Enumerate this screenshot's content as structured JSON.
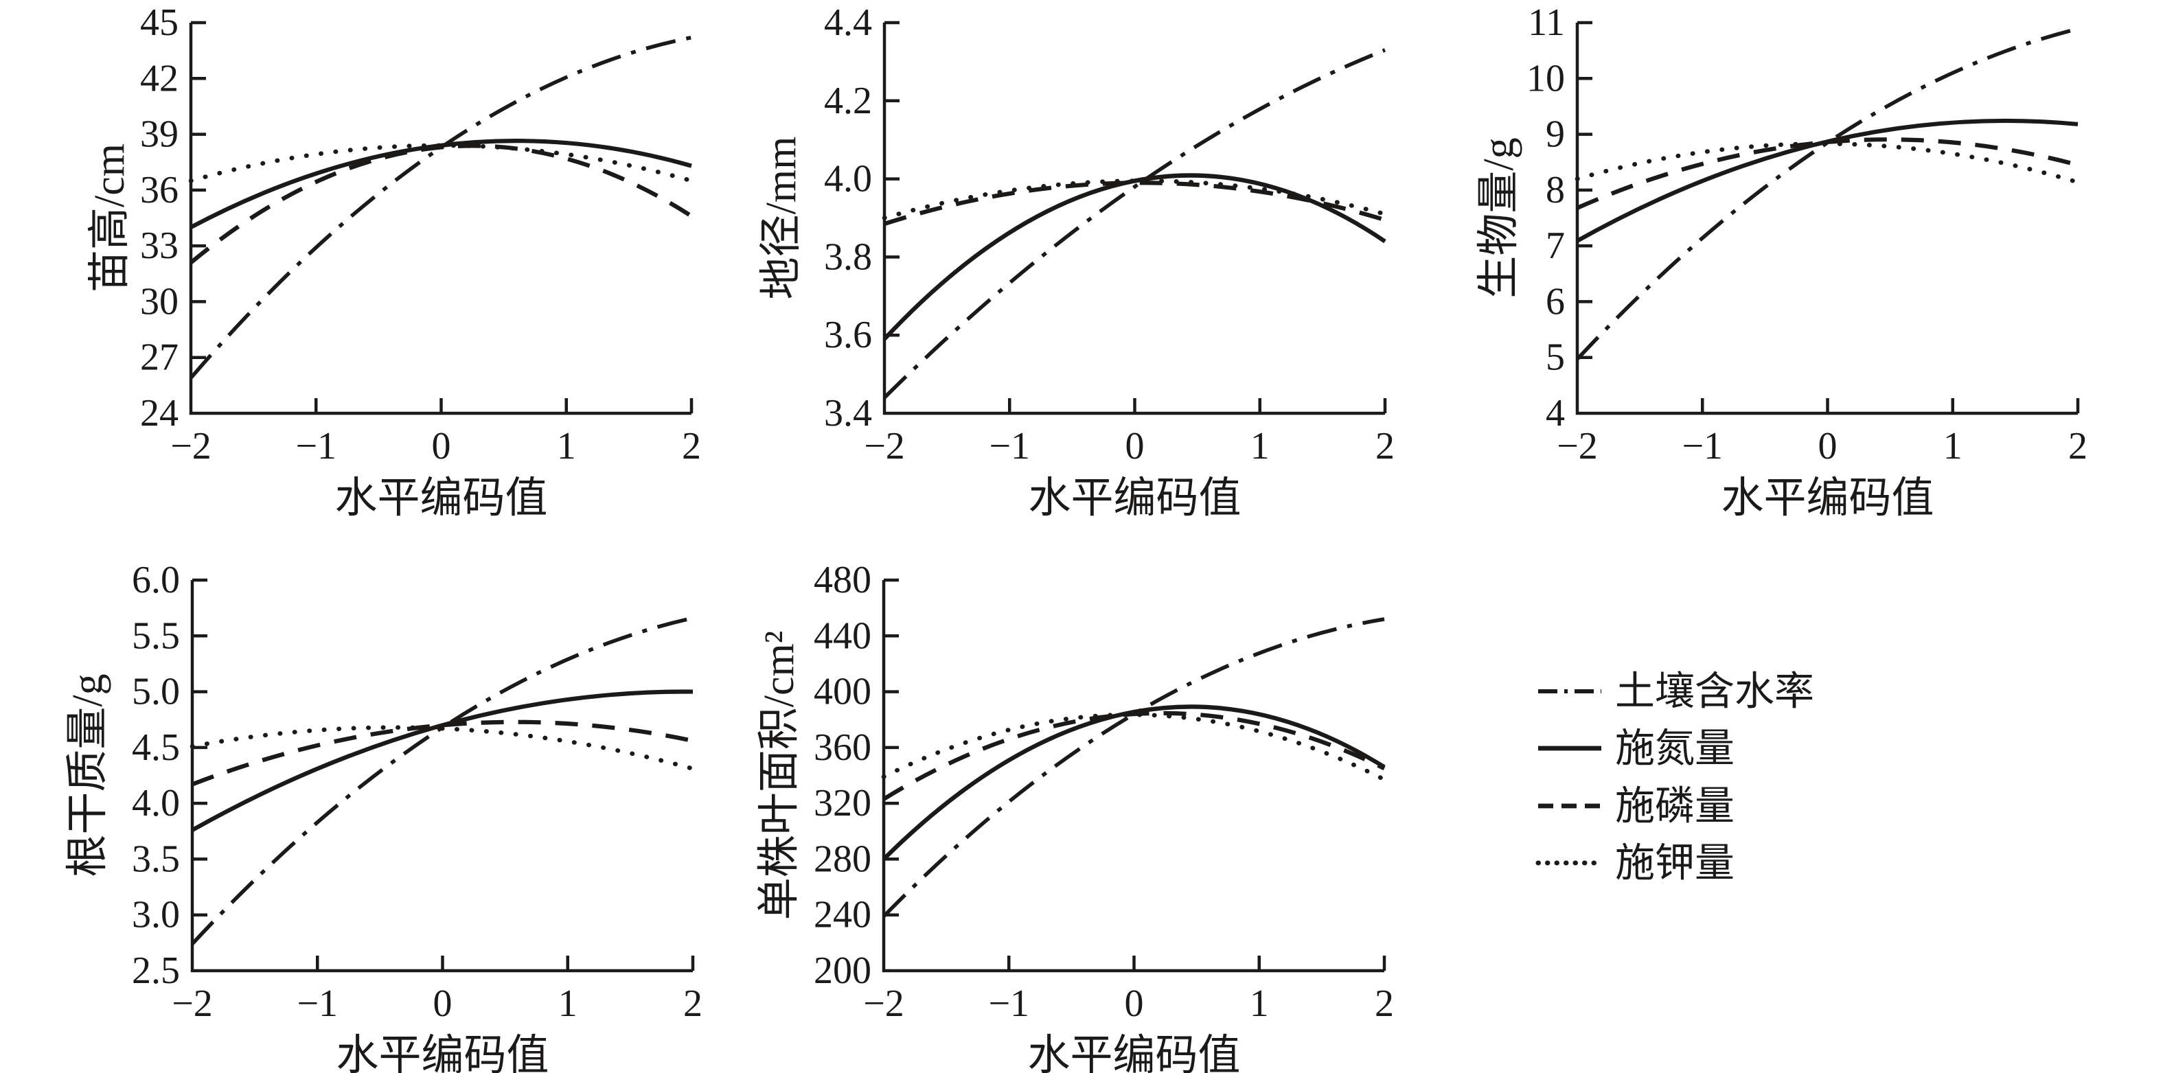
{
  "figure": {
    "background": "#ffffff",
    "line_color": "#1c1a19",
    "xlabel": "水平编码值",
    "legend": {
      "position": "bottom-right-cell",
      "items": [
        {
          "id": "soil-water-content",
          "label": "土壤含水率",
          "line_style": "dashdot"
        },
        {
          "id": "nitrogen-rate",
          "label": "施氮量",
          "line_style": "solid"
        },
        {
          "id": "phosphorus-rate",
          "label": "施磷量",
          "line_style": "dashed"
        },
        {
          "id": "potassium-rate",
          "label": "施钾量",
          "line_style": "dotted"
        }
      ]
    }
  },
  "chart_data": [
    {
      "id": "seedling-height",
      "type": "line",
      "title": "",
      "ylabel": "苗高/cm",
      "xlabel": "水平编码值",
      "xlim": [
        -2,
        2
      ],
      "ylim": [
        24,
        45
      ],
      "x_tick_labels": [
        "−2",
        "−1",
        "0",
        "1",
        "2"
      ],
      "x_ticks": [
        -2,
        -1,
        0,
        1,
        2
      ],
      "y_tick_labels": [
        "24",
        "27",
        "30",
        "33",
        "36",
        "39",
        "42",
        "45"
      ],
      "y_ticks": [
        24,
        27,
        30,
        33,
        36,
        39,
        42,
        45
      ],
      "grid": false,
      "series": [
        {
          "name": "土壤含水率",
          "line_style": "dashdot",
          "x": [
            -2,
            0,
            2
          ],
          "y": [
            25.9,
            38.3,
            44.2
          ]
        },
        {
          "name": "施氮量",
          "line_style": "solid",
          "x": [
            -2,
            0,
            2
          ],
          "y": [
            34.0,
            38.4,
            37.3
          ]
        },
        {
          "name": "施磷量",
          "line_style": "dashed",
          "x": [
            -2,
            0,
            2
          ],
          "y": [
            32.1,
            38.3,
            34.6
          ]
        },
        {
          "name": "施钾量",
          "line_style": "dotted",
          "x": [
            -2,
            0,
            2
          ],
          "y": [
            36.5,
            38.4,
            36.5
          ]
        }
      ]
    },
    {
      "id": "ground-diameter",
      "type": "line",
      "title": "",
      "ylabel": "地径/mm",
      "xlabel": "水平编码值",
      "xlim": [
        -2,
        2
      ],
      "ylim": [
        3.4,
        4.4
      ],
      "x_tick_labels": [
        "−2",
        "−1",
        "0",
        "1",
        "2"
      ],
      "x_ticks": [
        -2,
        -1,
        0,
        1,
        2
      ],
      "y_tick_labels": [
        "3.4",
        "3.6",
        "3.8",
        "4.0",
        "4.2",
        "4.4"
      ],
      "y_ticks": [
        3.4,
        3.6,
        3.8,
        4.0,
        4.2,
        4.4
      ],
      "grid": false,
      "series": [
        {
          "name": "土壤含水率",
          "line_style": "dashdot",
          "x": [
            -2,
            0,
            2
          ],
          "y": [
            3.44,
            3.98,
            4.33
          ]
        },
        {
          "name": "施氮量",
          "line_style": "solid",
          "x": [
            -2,
            0,
            2
          ],
          "y": [
            3.59,
            3.995,
            3.84
          ]
        },
        {
          "name": "施磷量",
          "line_style": "dashed",
          "x": [
            -2,
            0,
            2
          ],
          "y": [
            3.885,
            3.99,
            3.895
          ]
        },
        {
          "name": "施钾量",
          "line_style": "dotted",
          "x": [
            -2,
            0,
            2
          ],
          "y": [
            3.9,
            3.995,
            3.91
          ]
        }
      ]
    },
    {
      "id": "biomass",
      "type": "line",
      "title": "",
      "ylabel": "生物量/g",
      "xlabel": "水平编码值",
      "xlim": [
        -2,
        2
      ],
      "ylim": [
        4,
        11
      ],
      "x_tick_labels": [
        "−2",
        "−1",
        "0",
        "1",
        "2"
      ],
      "x_ticks": [
        -2,
        -1,
        0,
        1,
        2
      ],
      "y_tick_labels": [
        "4",
        "5",
        "6",
        "7",
        "8",
        "9",
        "10",
        "11"
      ],
      "y_ticks": [
        4,
        5,
        6,
        7,
        8,
        9,
        10,
        11
      ],
      "grid": false,
      "series": [
        {
          "name": "土壤含水率",
          "line_style": "dashdot",
          "x": [
            -2,
            0,
            2
          ],
          "y": [
            4.97,
            8.85,
            10.89
          ]
        },
        {
          "name": "施氮量",
          "line_style": "solid",
          "x": [
            -2,
            0,
            2
          ],
          "y": [
            7.09,
            8.87,
            9.18
          ]
        },
        {
          "name": "施磷量",
          "line_style": "dashed",
          "x": [
            -2,
            0,
            2
          ],
          "y": [
            7.68,
            8.86,
            8.45
          ]
        },
        {
          "name": "施钾量",
          "line_style": "dotted",
          "x": [
            -2,
            0,
            2
          ],
          "y": [
            8.2,
            8.83,
            8.14
          ]
        }
      ]
    },
    {
      "id": "root-dry-mass",
      "type": "line",
      "title": "",
      "ylabel": "根干质量/g",
      "xlabel": "水平编码值",
      "xlim": [
        -2,
        2
      ],
      "ylim": [
        2.5,
        6.0
      ],
      "x_tick_labels": [
        "−2",
        "−1",
        "0",
        "1",
        "2"
      ],
      "x_ticks": [
        -2,
        -1,
        0,
        1,
        2
      ],
      "y_tick_labels": [
        "2.5",
        "3.0",
        "3.5",
        "4.0",
        "4.5",
        "5.0",
        "5.5",
        "6.0"
      ],
      "y_ticks": [
        2.5,
        3.0,
        3.5,
        4.0,
        4.5,
        5.0,
        5.5,
        6.0
      ],
      "grid": false,
      "series": [
        {
          "name": "土壤含水率",
          "line_style": "dashdot",
          "x": [
            -2,
            0,
            2
          ],
          "y": [
            2.74,
            4.68,
            5.66
          ]
        },
        {
          "name": "施氮量",
          "line_style": "solid",
          "x": [
            -2,
            0,
            2
          ],
          "y": [
            3.76,
            4.7,
            5.0
          ]
        },
        {
          "name": "施磷量",
          "line_style": "dashed",
          "x": [
            -2,
            0,
            2
          ],
          "y": [
            4.17,
            4.7,
            4.56
          ]
        },
        {
          "name": "施钾量",
          "line_style": "dotted",
          "x": [
            -2,
            0,
            2
          ],
          "y": [
            4.51,
            4.67,
            4.31
          ]
        }
      ]
    },
    {
      "id": "leaf-area-per-plant",
      "type": "line",
      "title": "",
      "ylabel": "单株叶面积/cm²",
      "xlabel": "水平编码值",
      "xlim": [
        -2,
        2
      ],
      "ylim": [
        200,
        480
      ],
      "x_tick_labels": [
        "−2",
        "−1",
        "0",
        "1",
        "2"
      ],
      "x_ticks": [
        -2,
        -1,
        0,
        1,
        2
      ],
      "y_tick_labels": [
        "200",
        "240",
        "280",
        "320",
        "360",
        "400",
        "440",
        "480"
      ],
      "y_ticks": [
        200,
        240,
        280,
        320,
        360,
        400,
        440,
        480
      ],
      "grid": false,
      "series": [
        {
          "name": "土壤含水率",
          "line_style": "dashdot",
          "x": [
            -2,
            0,
            2
          ],
          "y": [
            239,
            384,
            452
          ]
        },
        {
          "name": "施氮量",
          "line_style": "solid",
          "x": [
            -2,
            0,
            2
          ],
          "y": [
            280,
            385.5,
            346
          ]
        },
        {
          "name": "施磷量",
          "line_style": "dashed",
          "x": [
            -2,
            0,
            2
          ],
          "y": [
            323,
            384,
            345
          ]
        },
        {
          "name": "施钾量",
          "line_style": "dotted",
          "x": [
            -2,
            0,
            2
          ],
          "y": [
            339,
            383.5,
            337
          ]
        }
      ]
    }
  ]
}
